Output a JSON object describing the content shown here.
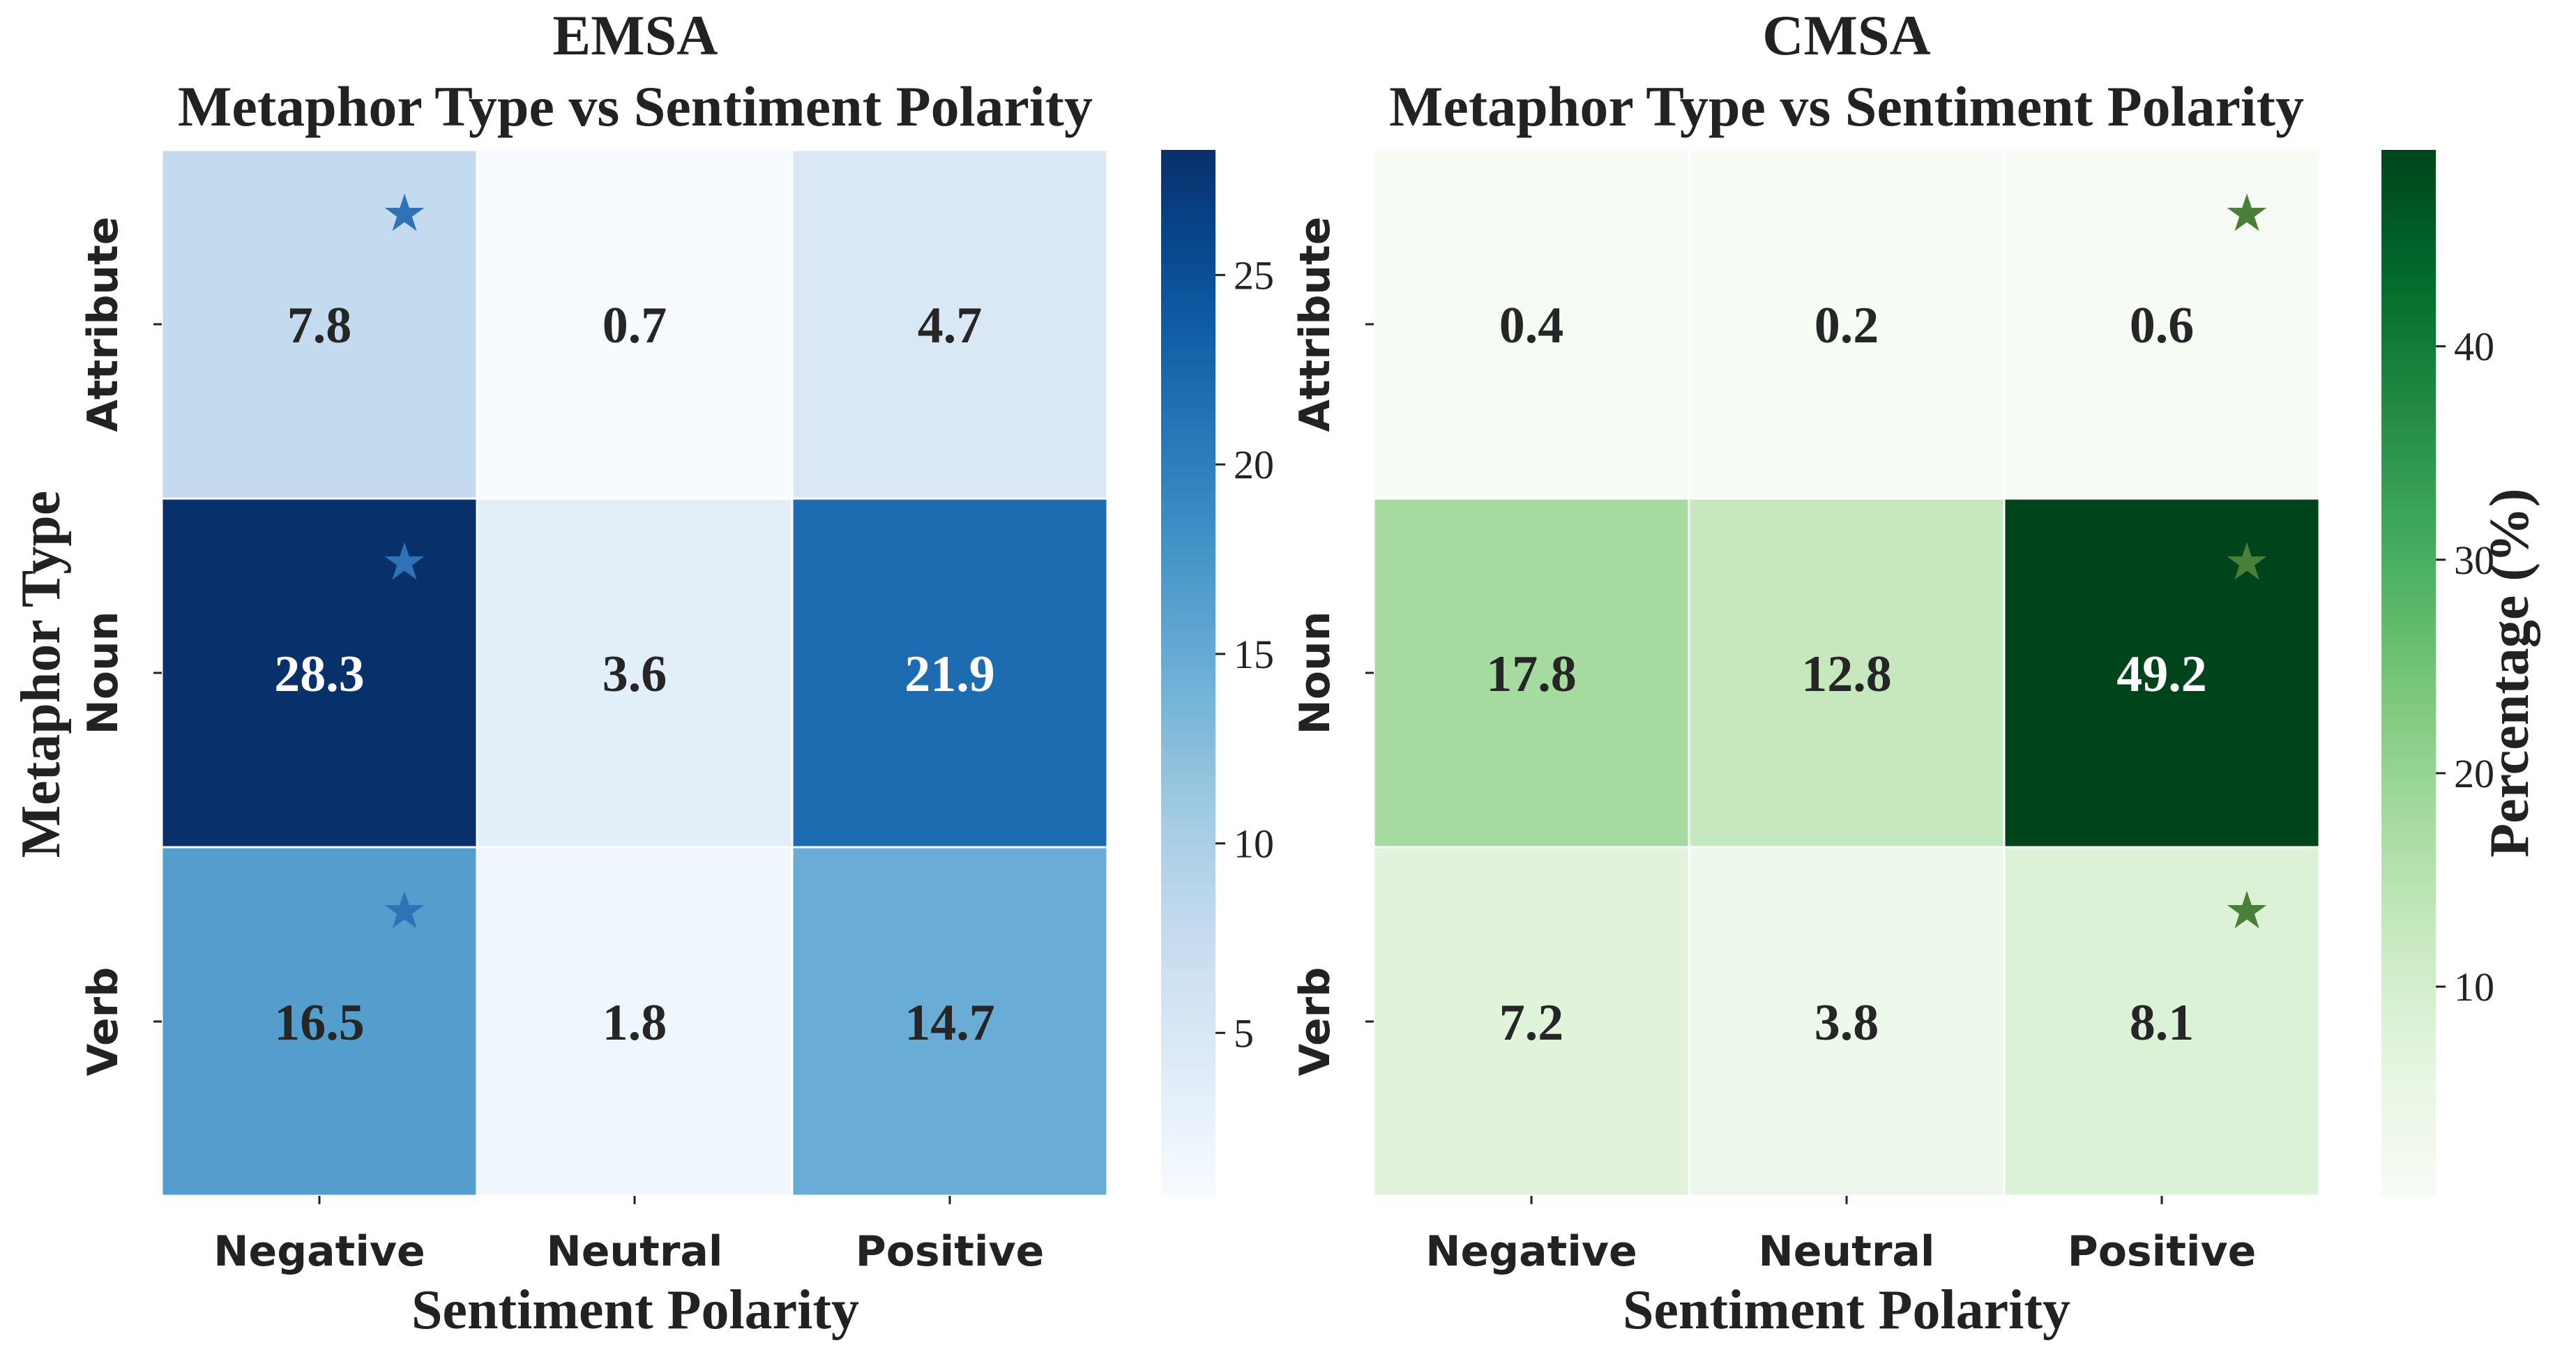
{
  "chart_data": [
    {
      "type": "heatmap",
      "title": "EMSA\nMetaphor Type vs Sentiment Polarity",
      "xlabel": "Sentiment Polarity",
      "ylabel": "Metaphor Type",
      "x_categories": [
        "Negative",
        "Neutral",
        "Positive"
      ],
      "y_categories": [
        "Attribute",
        "Noun",
        "Verb"
      ],
      "values": [
        [
          7.8,
          0.7,
          4.7
        ],
        [
          28.3,
          3.6,
          21.9
        ],
        [
          16.5,
          1.8,
          14.7
        ]
      ],
      "starred": [
        [
          0,
          0
        ],
        [
          1,
          0
        ],
        [
          2,
          0
        ]
      ],
      "colormap": "Blues",
      "colorbar": {
        "label": "",
        "min": 0.7,
        "max": 28.3,
        "ticks": [
          5,
          10,
          15,
          20,
          25
        ]
      },
      "star_color": "#2f72b8"
    },
    {
      "type": "heatmap",
      "title": "CMSA\nMetaphor Type vs Sentiment Polarity",
      "xlabel": "Sentiment Polarity",
      "ylabel": "",
      "x_categories": [
        "Negative",
        "Neutral",
        "Positive"
      ],
      "y_categories": [
        "Attribute",
        "Noun",
        "Verb"
      ],
      "values": [
        [
          0.4,
          0.2,
          0.6
        ],
        [
          17.8,
          12.8,
          49.2
        ],
        [
          7.2,
          3.8,
          8.1
        ]
      ],
      "starred": [
        [
          0,
          2
        ],
        [
          1,
          2
        ],
        [
          2,
          2
        ]
      ],
      "colormap": "Greens",
      "colorbar": {
        "label": "Percentage (%)",
        "min": 0.2,
        "max": 49.2,
        "ticks": [
          10,
          20,
          30,
          40
        ]
      },
      "star_color": "#4a7f3a"
    }
  ]
}
